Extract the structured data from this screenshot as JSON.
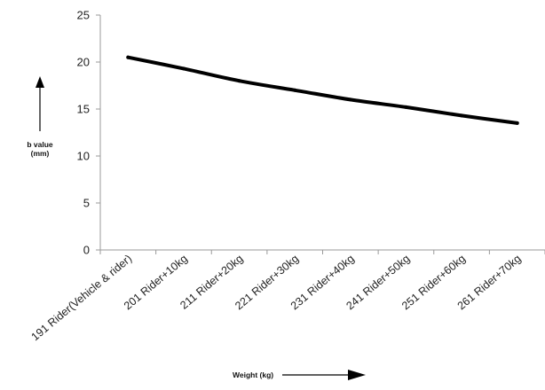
{
  "chart_data": {
    "type": "line",
    "categories": [
      "191 Rider(Vehicle & rider)",
      "201 Rider+10kg",
      "211 Rider+20kg",
      "221 Rider+30kg",
      "231 Rider+40kg",
      "241 Rider+50kg",
      "251 Rider+60kg",
      "261 Rider+70kg"
    ],
    "series": [
      {
        "values": [
          20.5,
          19.3,
          18.0,
          17.0,
          16.0,
          15.2,
          14.3,
          13.5
        ]
      }
    ],
    "ylabel_line1": "b value",
    "ylabel_line2": "(mm)",
    "xlabel": "Weight (kg)",
    "ylim": [
      0,
      25
    ],
    "yticks": [
      0,
      5,
      10,
      15,
      20,
      25
    ],
    "grid": false,
    "colors": {
      "line": "#000000",
      "axis": "#9a9a9a",
      "arrow": "#000000"
    }
  }
}
